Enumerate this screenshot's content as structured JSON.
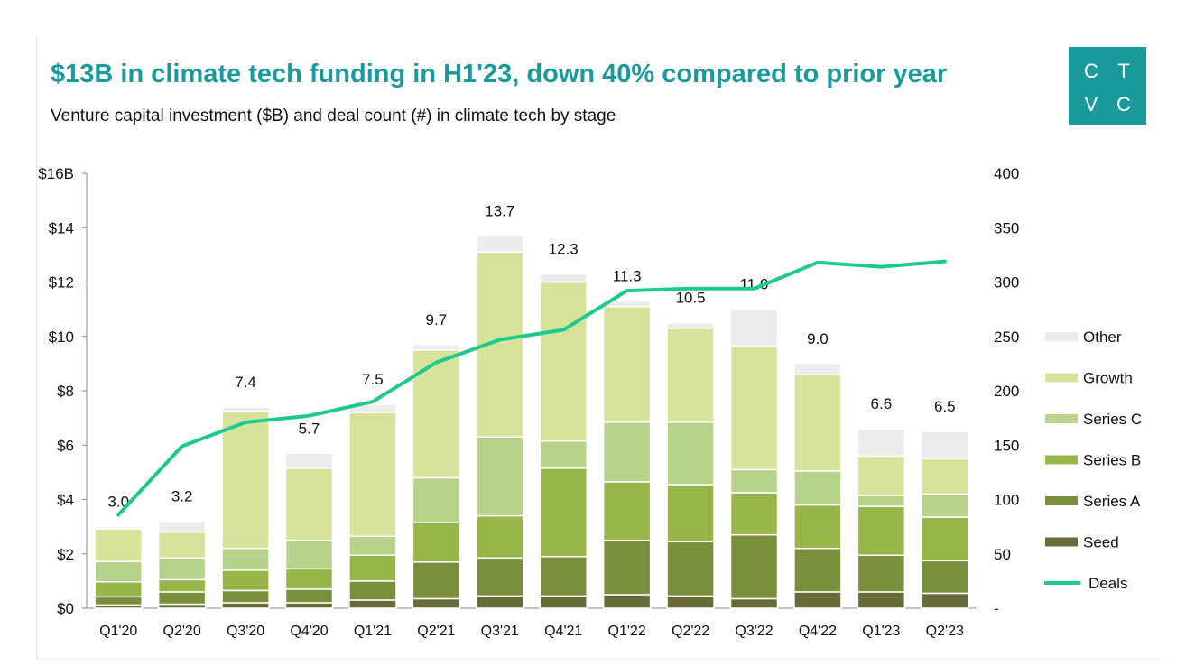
{
  "header": {
    "title": "$13B in climate tech funding in H1'23, down 40% compared to prior year",
    "subtitle": "Venture capital investment ($B) and deal count (#) in climate tech by stage"
  },
  "logo": {
    "letters": [
      "C",
      "T",
      "V",
      "C"
    ]
  },
  "colors": {
    "brand": "#1a9a9a",
    "seed": "#686a3a",
    "series_a": "#7a8f3c",
    "series_b": "#98b548",
    "series_c": "#b7d38a",
    "growth": "#d5e39b",
    "other": "#ececec",
    "deals": "#1ec98f"
  },
  "chart_data": {
    "type": "bar",
    "stacked": true,
    "categories": [
      "Q1'20",
      "Q2'20",
      "Q3'20",
      "Q4'20",
      "Q1'21",
      "Q2'21",
      "Q3'21",
      "Q4'21",
      "Q1'22",
      "Q2'22",
      "Q3'22",
      "Q4'22",
      "Q1'23",
      "Q2'23"
    ],
    "series": [
      {
        "name": "Seed",
        "values": [
          0.12,
          0.15,
          0.2,
          0.2,
          0.3,
          0.35,
          0.45,
          0.45,
          0.5,
          0.45,
          0.35,
          0.6,
          0.6,
          0.55
        ]
      },
      {
        "name": "Series A",
        "values": [
          0.3,
          0.45,
          0.45,
          0.5,
          0.7,
          1.35,
          1.4,
          1.45,
          2.0,
          2.0,
          2.35,
          1.6,
          1.35,
          1.2
        ]
      },
      {
        "name": "Series B",
        "values": [
          0.55,
          0.45,
          0.75,
          0.75,
          0.95,
          1.45,
          1.55,
          3.25,
          2.15,
          2.1,
          1.55,
          1.6,
          1.8,
          1.6
        ]
      },
      {
        "name": "Series C",
        "values": [
          0.75,
          0.8,
          0.8,
          1.05,
          0.7,
          1.65,
          2.9,
          1.0,
          2.2,
          2.3,
          0.85,
          1.25,
          0.4,
          0.85
        ]
      },
      {
        "name": "Growth",
        "values": [
          1.2,
          0.95,
          5.05,
          2.65,
          4.55,
          4.7,
          6.8,
          5.85,
          4.25,
          3.45,
          4.55,
          3.55,
          1.45,
          1.3
        ]
      },
      {
        "name": "Other",
        "values": [
          0.08,
          0.4,
          0.15,
          0.55,
          0.3,
          0.2,
          0.6,
          0.3,
          0.2,
          0.2,
          1.35,
          0.4,
          1.0,
          1.0
        ]
      }
    ],
    "totals": [
      "3.0",
      "3.2",
      "7.4",
      "5.7",
      "7.5",
      "9.7",
      "13.7",
      "12.3",
      "11.3",
      "10.5",
      "11.0",
      "9.0",
      "6.6",
      "6.5"
    ],
    "line": {
      "name": "Deals",
      "axis": "right",
      "values": [
        86,
        149,
        171,
        177,
        190,
        226,
        247,
        256,
        292,
        294,
        294,
        318,
        314,
        319
      ]
    },
    "y_left": {
      "ylim": [
        0,
        16
      ],
      "ticks": [
        "$0",
        "$2",
        "$4",
        "$6",
        "$8",
        "$10",
        "$12",
        "$14",
        "$16B"
      ]
    },
    "y_right": {
      "ylim": [
        0,
        400
      ],
      "ticks": [
        "-",
        "50",
        "100",
        "150",
        "200",
        "250",
        "300",
        "350",
        "400"
      ]
    },
    "legend": {
      "placement": "right",
      "items": [
        "Other",
        "Growth",
        "Series C",
        "Series B",
        "Series A",
        "Seed",
        "Deals"
      ]
    },
    "grid": false
  }
}
